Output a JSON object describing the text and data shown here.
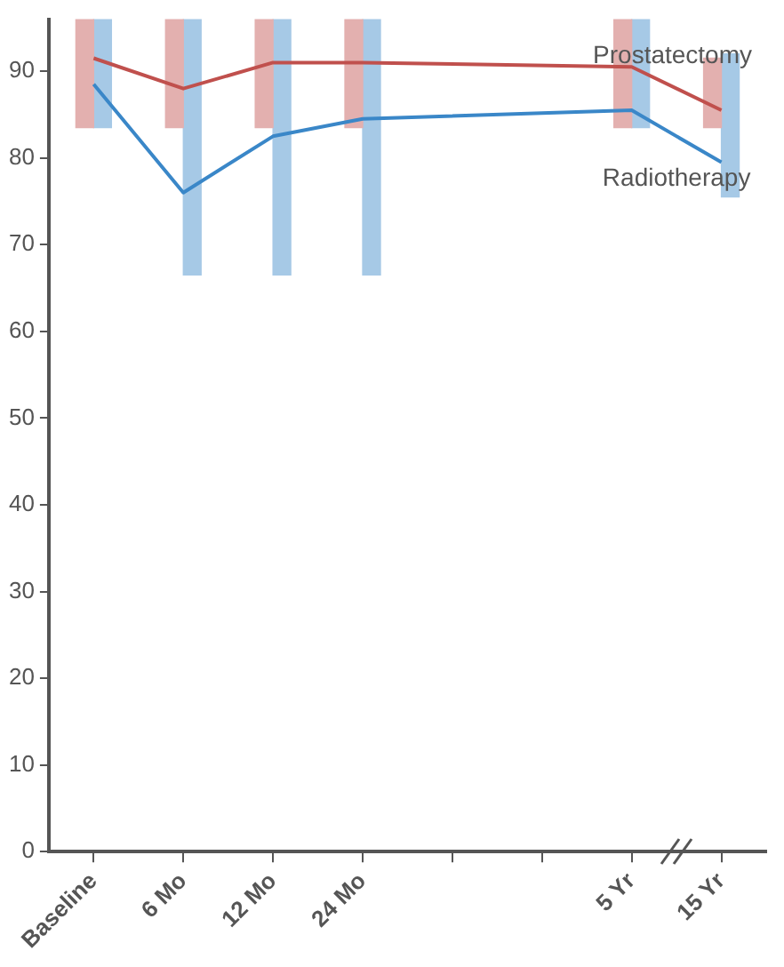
{
  "chart_data": {
    "type": "line",
    "categories": [
      "Baseline",
      "6 Mo",
      "12 Mo",
      "24 Mo",
      null,
      null,
      "5 Yr",
      "15 Yr"
    ],
    "ylim": [
      0,
      96
    ],
    "yticks": [
      0,
      10,
      20,
      30,
      40,
      50,
      60,
      70,
      80,
      90
    ],
    "series": [
      {
        "type": "bar",
        "color": "#e3b0af",
        "base": [
          83.5,
          83.5,
          83.5,
          83.5,
          null,
          null,
          83.5,
          83.5
        ],
        "values": [
          12.5,
          12.5,
          12.5,
          12.5,
          null,
          null,
          12.5,
          8
        ]
      },
      {
        "type": "bar",
        "color": "#a6c9e6",
        "base": [
          83.5,
          66.5,
          66.5,
          66.5,
          null,
          null,
          83.5,
          75.5
        ],
        "values": [
          12.5,
          29.5,
          29.5,
          29.5,
          null,
          null,
          12.5,
          16.5
        ]
      },
      {
        "name": "Prostatectomy",
        "color": "#c0504d",
        "values": [
          91.5,
          88,
          91,
          91,
          null,
          null,
          90.5,
          85.5
        ]
      },
      {
        "name": "Radiotherapy",
        "color": "#3a87c8",
        "values": [
          88.5,
          76,
          82.5,
          84.5,
          null,
          null,
          85.5,
          79.5
        ]
      }
    ]
  }
}
